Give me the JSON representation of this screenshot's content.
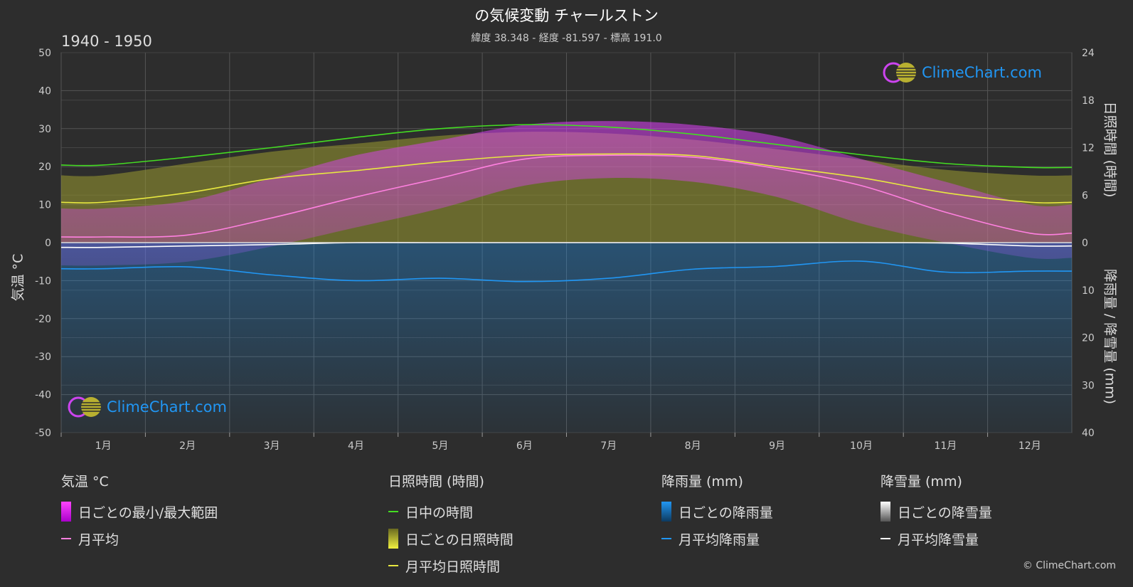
{
  "header": {
    "title": "の気候変動 チャールストン",
    "subtitle": "緯度 38.348 - 経度 -81.597 - 標高 191.0",
    "period": "1940 - 1950"
  },
  "axes": {
    "left_title": "気温 °C",
    "right_top_title": "日照時間 (時間)",
    "right_bottom_title": "降雨量 / 降雪量 (mm)"
  },
  "logo_text": "ClimeChart.com",
  "copyright": "© ClimeChart.com",
  "legend": {
    "temp": {
      "title": "気温 °C",
      "range_label": "日ごとの最小/最大範囲",
      "mean_label": "月平均"
    },
    "sun": {
      "title": "日照時間 (時間)",
      "daylight_label": "日中の時間",
      "daily_label": "日ごとの日照時間",
      "mean_label": "月平均日照時間"
    },
    "rain": {
      "title": "降雨量 (mm)",
      "daily_label": "日ごとの降雨量",
      "mean_label": "月平均降雨量"
    },
    "snow": {
      "title": "降雪量 (mm)",
      "daily_label": "日ごとの降雪量",
      "mean_label": "月平均降雪量"
    }
  },
  "colors": {
    "background": "#2d2d2d",
    "grid": "#555555",
    "temp_range": "#e040fb",
    "temp_mean": "#ff80e0",
    "daylight": "#44dd22",
    "sunshine_daily": "#9a9a30",
    "sunshine_mean": "#e8e840",
    "rain": "#2196f3",
    "snow": "#ffffff",
    "logo": "#2196f3"
  },
  "chart_data": {
    "type": "line",
    "categories": [
      "1月",
      "2月",
      "3月",
      "4月",
      "5月",
      "6月",
      "7月",
      "8月",
      "9月",
      "10月",
      "11月",
      "12月"
    ],
    "y_left": {
      "label": "気温 °C",
      "lim": [
        -50,
        50
      ],
      "ticks": [
        50,
        40,
        30,
        20,
        10,
        0,
        -10,
        -20,
        -30,
        -40,
        -50
      ]
    },
    "y_right_top": {
      "label": "日照時間 (時間)",
      "lim": [
        0,
        24
      ],
      "ticks": [
        24,
        18,
        12,
        6,
        0
      ]
    },
    "y_right_bottom": {
      "label": "降雨量 / 降雪量 (mm)",
      "lim": [
        0,
        40
      ],
      "ticks": [
        0,
        10,
        20,
        30,
        40
      ]
    },
    "series": [
      {
        "name": "日中の時間",
        "axis": "sun",
        "values": [
          9.8,
          10.8,
          12.0,
          13.3,
          14.4,
          14.9,
          14.6,
          13.7,
          12.4,
          11.1,
          10.0,
          9.5
        ]
      },
      {
        "name": "月平均日照時間",
        "axis": "sun",
        "values": [
          5.1,
          6.3,
          8.1,
          9.1,
          10.2,
          11.0,
          11.2,
          11.0,
          9.6,
          8.2,
          6.3,
          5.1
        ]
      },
      {
        "name": "月平均",
        "axis": "temp",
        "values": [
          1.5,
          2.0,
          6.5,
          12.0,
          17.0,
          22.0,
          23.0,
          22.5,
          19.5,
          15.0,
          8.0,
          2.5
        ]
      },
      {
        "name": "月平均降雨量",
        "axis": "precip",
        "values": [
          5.5,
          5.1,
          6.8,
          8.0,
          7.5,
          8.2,
          7.5,
          5.6,
          5.0,
          3.9,
          6.2,
          6.0
        ]
      },
      {
        "name": "月平均降雪量",
        "axis": "precip",
        "values": [
          1.0,
          0.7,
          0.4,
          0.0,
          0.0,
          0.0,
          0.0,
          0.0,
          0.0,
          0.0,
          0.1,
          0.7
        ]
      }
    ],
    "temp_range_band": {
      "name": "日ごとの最小/最大範囲",
      "max": [
        9,
        11,
        17,
        23,
        27,
        31,
        32,
        31,
        28,
        22,
        16,
        10
      ],
      "min": [
        -6,
        -5,
        -1,
        4,
        9,
        15,
        17,
        16,
        12,
        5,
        0,
        -4
      ]
    },
    "sunshine_daily_band": {
      "name": "日ごとの日照時間",
      "max": [
        8.5,
        10,
        11.5,
        12.5,
        13.5,
        14,
        13.8,
        13,
        11.8,
        10.5,
        9.2,
        8.5
      ]
    }
  }
}
